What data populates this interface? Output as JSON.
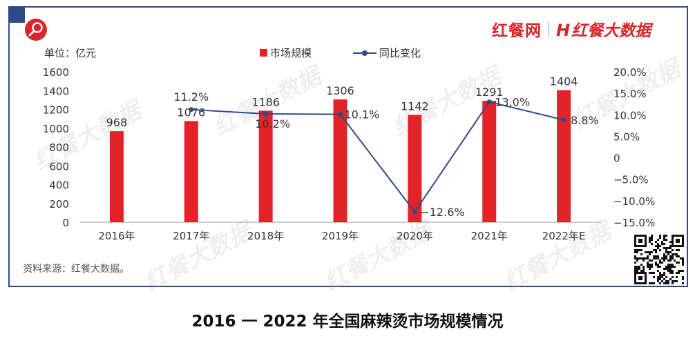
{
  "logo": {
    "brand_site": "红餐网",
    "brand_data": "红餐大数据",
    "brand_mark": "H"
  },
  "watermark": "红餐大数据",
  "chart_data": {
    "type": "bar",
    "categories": [
      "2016年",
      "2017年",
      "2018年",
      "2019年",
      "2020年",
      "2021年",
      "2022年E"
    ],
    "unit_label": "单位：亿元",
    "series": [
      {
        "name": "市场规模",
        "type": "bar",
        "axis": "left",
        "values": [
          968,
          1076,
          1186,
          1306,
          1142,
          1291,
          1404
        ],
        "labels": [
          "968",
          "1076",
          "1186",
          "1306",
          "1142",
          "1291",
          "1404"
        ]
      },
      {
        "name": "同比变化",
        "type": "line",
        "axis": "right",
        "values": [
          null,
          11.2,
          10.2,
          10.1,
          -12.6,
          13.0,
          8.8
        ],
        "labels": [
          "",
          "11.2%",
          "10.2%",
          "10.1%",
          "−12.6%",
          "13.0%",
          "8.8%"
        ]
      }
    ],
    "ylim_left": [
      0,
      1600
    ],
    "yticks_left": [
      0,
      200,
      400,
      600,
      800,
      1000,
      1200,
      1400,
      1600
    ],
    "ylim_right": [
      -15,
      20
    ],
    "yticks_right": [
      "−15.0%",
      "−10.0%",
      "−5.0%",
      "0",
      "5.0%",
      "10.0%",
      "15.0%",
      "20.0%"
    ],
    "grid": false,
    "legend": "top-center",
    "colors": {
      "bar": "#e3232a",
      "line": "#2e4a86"
    }
  },
  "source": "资料来源：红餐大数据。",
  "caption": "2016 一 2022 年全国麻辣烫市场规模情况"
}
